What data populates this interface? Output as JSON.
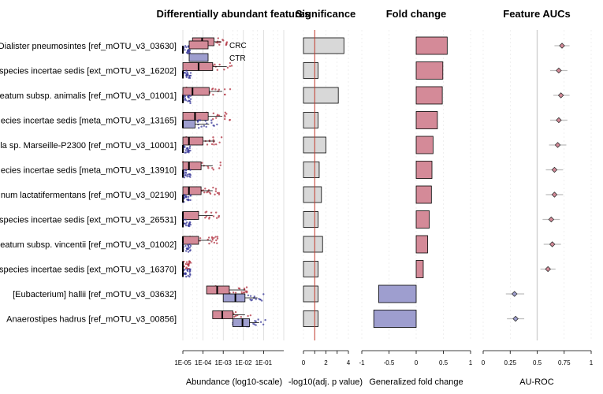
{
  "panels": {
    "abundance_title": "Differentially abundant features",
    "significance_title": "Significance",
    "foldchange_title": "Fold change",
    "auc_title": "Feature AUCs"
  },
  "axes": {
    "abundance_xlabel": "Abundance (log10-scale)",
    "significance_xlabel": "-log10(adj. p value)",
    "foldchange_xlabel": "Generalized fold change",
    "auc_xlabel": "AU-ROC"
  },
  "colors": {
    "crc": "#d48a98",
    "crc_point": "#b0303f",
    "ctr": "#9e9ecf",
    "ctr_point": "#3a3a9a",
    "sig_bar": "#d8d8d8",
    "sig_line": "#c0392b",
    "grid": "#cccccc"
  },
  "chart_data": [
    {
      "type": "box",
      "title": "Differentially abundant features",
      "xlabel": "Abundance (log10-scale)",
      "xscale": "log10",
      "xlim": [
        1e-05,
        1
      ],
      "xticks": [
        "1E-05",
        "1E-04",
        "1E-03",
        "1E-02",
        "1E-01"
      ],
      "legend": {
        "placement": "top-right",
        "entries": [
          "CRC",
          "CTR"
        ]
      },
      "features": [
        "Dialister pneumosintes [ref_mOTU_v3_03630]",
        "species incertae sedis [ext_mOTU_v3_16202]",
        "eatum subsp. animalis [ref_mOTU_v3_01001]",
        "ecies incertae sedis [meta_mOTU_v3_13165]",
        "la sp. Marseille-P2300 [ref_mOTU_v3_10001]",
        "ecies incertae sedis [meta_mOTU_v3_13910]",
        "num lactatifermentans [ref_mOTU_v3_02190]",
        "species incertae sedis [ext_mOTU_v3_26531]",
        "eatum subsp. vincentii [ref_mOTU_v3_01002]",
        "species incertae sedis [ext_mOTU_v3_16370]",
        "[Eubacterium] hallii [ref_mOTU_v3_03632]",
        "Anaerostipes hadrus [ref_mOTU_v3_00856]"
      ],
      "series": [
        {
          "name": "CRC",
          "boxes": [
            {
              "q1": 3e-05,
              "median": 9e-05,
              "q3": 0.00035,
              "whisker_hi": 0.0008
            },
            {
              "q1": 1e-05,
              "median": 6e-05,
              "q3": 0.0003,
              "whisker_hi": 0.0015
            },
            {
              "q1": 1e-05,
              "median": 3e-05,
              "q3": 0.0002,
              "whisker_hi": 0.0009
            },
            {
              "q1": 1e-05,
              "median": 4e-05,
              "q3": 0.00018,
              "whisker_hi": 0.0009
            },
            {
              "q1": 1e-05,
              "median": 2e-05,
              "q3": 0.0001,
              "whisker_hi": 0.0004
            },
            {
              "q1": 1e-05,
              "median": 2e-05,
              "q3": 8e-05,
              "whisker_hi": 0.0003
            },
            {
              "q1": 1e-05,
              "median": 2e-05,
              "q3": 8e-05,
              "whisker_hi": 0.0003
            },
            {
              "q1": 1e-05,
              "median": 1e-05,
              "q3": 6e-05,
              "whisker_hi": 0.0003
            },
            {
              "q1": 1e-05,
              "median": 1e-05,
              "q3": 6e-05,
              "whisker_hi": 0.00025
            },
            {
              "q1": 1e-05,
              "median": 1e-05,
              "q3": 1e-05,
              "whisker_hi": 1e-05
            },
            {
              "q1": 0.00015,
              "median": 0.0005,
              "q3": 0.002,
              "whisker_hi": 0.012
            },
            {
              "q1": 0.0003,
              "median": 0.0009,
              "q3": 0.003,
              "whisker_hi": 0.012
            }
          ]
        },
        {
          "name": "CTR",
          "boxes": [
            {
              "q1": 1e-05,
              "median": 1e-05,
              "q3": 1e-05,
              "whisker_hi": 1e-05
            },
            {
              "q1": 1e-05,
              "median": 1e-05,
              "q3": 1e-05,
              "whisker_hi": 1e-05
            },
            {
              "q1": 1e-05,
              "median": 1e-05,
              "q3": 1e-05,
              "whisker_hi": 1e-05
            },
            {
              "q1": 1e-05,
              "median": 1e-05,
              "q3": 4e-05,
              "whisker_hi": 0.0002
            },
            {
              "q1": 1e-05,
              "median": 1e-05,
              "q3": 1e-05,
              "whisker_hi": 1e-05
            },
            {
              "q1": 1e-05,
              "median": 1e-05,
              "q3": 1e-05,
              "whisker_hi": 1e-05
            },
            {
              "q1": 1e-05,
              "median": 1e-05,
              "q3": 1e-05,
              "whisker_hi": 1e-05
            },
            {
              "q1": 1e-05,
              "median": 1e-05,
              "q3": 1e-05,
              "whisker_hi": 1e-05
            },
            {
              "q1": 1e-05,
              "median": 1e-05,
              "q3": 1e-05,
              "whisker_hi": 1e-05
            },
            {
              "q1": 1e-05,
              "median": 1e-05,
              "q3": 1e-05,
              "whisker_hi": 1e-05
            },
            {
              "q1": 0.001,
              "median": 0.004,
              "q3": 0.012,
              "whisker_hi": 0.05
            },
            {
              "q1": 0.003,
              "median": 0.009,
              "q3": 0.02,
              "whisker_hi": 0.06
            }
          ]
        }
      ]
    },
    {
      "type": "bar",
      "title": "Significance",
      "xlabel": "-log10(adj. p value)",
      "xlim": [
        0,
        4
      ],
      "xticks": [
        "0",
        "2",
        "4"
      ],
      "threshold": 1,
      "values": [
        3.6,
        1.3,
        3.1,
        1.3,
        2.0,
        1.4,
        1.6,
        1.3,
        1.7,
        1.3,
        1.3,
        1.3
      ]
    },
    {
      "type": "bar",
      "title": "Fold change",
      "xlabel": "Generalized fold change",
      "xlim": [
        -1,
        1
      ],
      "xticks": [
        "-1",
        "-0.5",
        "0",
        "0.5",
        "1"
      ],
      "values": [
        0.57,
        0.49,
        0.48,
        0.39,
        0.31,
        0.29,
        0.28,
        0.24,
        0.21,
        0.13,
        -0.69,
        -0.78
      ]
    },
    {
      "type": "scatter",
      "title": "Feature AUCs",
      "xlabel": "AU-ROC",
      "xlim": [
        0,
        1
      ],
      "xticks": [
        "0",
        "0.25",
        "0.5",
        "0.75",
        "1"
      ],
      "reference": 0.5,
      "values": [
        0.73,
        0.7,
        0.72,
        0.7,
        0.69,
        0.66,
        0.66,
        0.63,
        0.64,
        0.6,
        0.29,
        0.3
      ],
      "ci": [
        [
          0.66,
          0.8
        ],
        [
          0.62,
          0.78
        ],
        [
          0.65,
          0.8
        ],
        [
          0.62,
          0.78
        ],
        [
          0.61,
          0.77
        ],
        [
          0.58,
          0.74
        ],
        [
          0.58,
          0.74
        ],
        [
          0.55,
          0.71
        ],
        [
          0.56,
          0.72
        ],
        [
          0.53,
          0.67
        ],
        [
          0.21,
          0.38
        ],
        [
          0.22,
          0.38
        ]
      ]
    }
  ]
}
